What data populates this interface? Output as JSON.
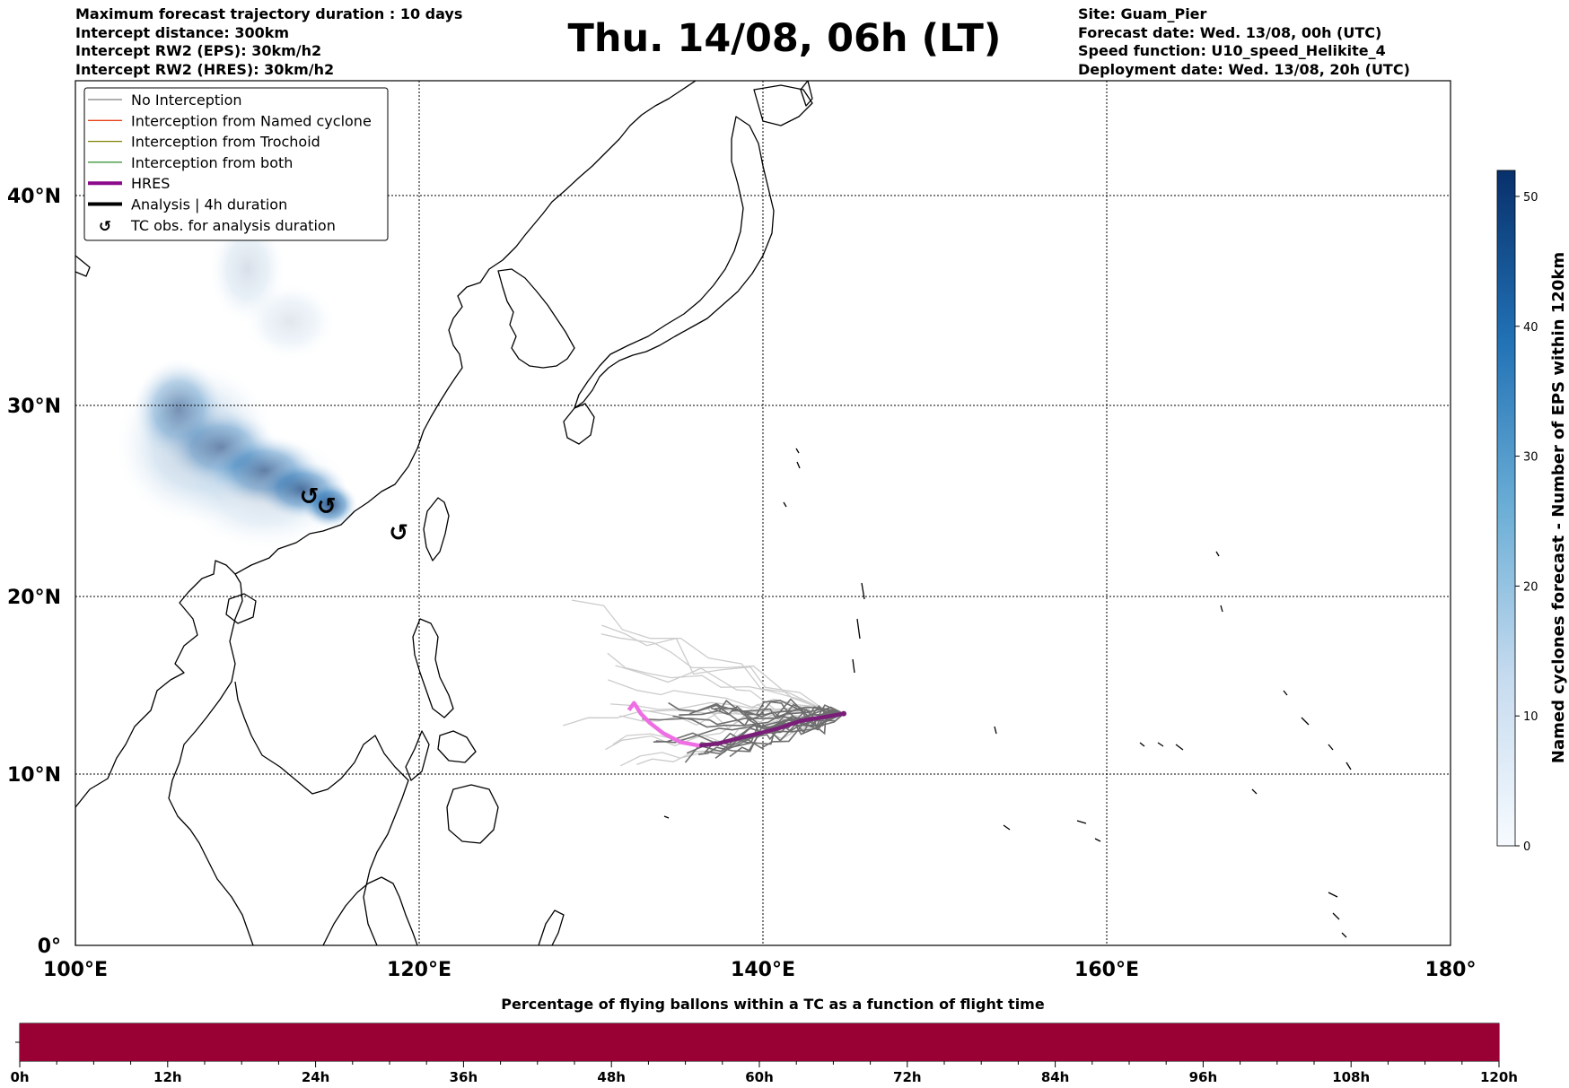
{
  "header": {
    "left": [
      "Maximum forecast trajectory duration : 10 days",
      "Intercept distance: 300km",
      "Intercept RW2 (EPS):  30km/h2",
      "Intercept RW2 (HRES): 30km/h2"
    ],
    "title": "Thu. 14/08, 06h (LT)",
    "right": [
      "Site: Guam_Pier",
      "Forecast date: Wed. 13/08, 00h (UTC)",
      "Speed function: U10_speed_Helikite_4",
      "Deployment date: Wed. 13/08, 20h (UTC)"
    ]
  },
  "map": {
    "lon_ticks": [
      {
        "value": 100,
        "label": "100°E"
      },
      {
        "value": 120,
        "label": "120°E"
      },
      {
        "value": 140,
        "label": "140°E"
      },
      {
        "value": 160,
        "label": "160°E"
      },
      {
        "value": 180,
        "label": "180°"
      }
    ],
    "lat_ticks": [
      {
        "value": 0,
        "label": "0°"
      },
      {
        "value": 10,
        "label": "10°N"
      },
      {
        "value": 20,
        "label": "20°N"
      },
      {
        "value": 30,
        "label": "30°N"
      },
      {
        "value": 40,
        "label": "40°N"
      }
    ],
    "site": {
      "name": "Guam_Pier",
      "lon": 144.7,
      "lat": 13.4
    },
    "tc_obs_symbol": "↺",
    "tc_obs": [
      {
        "lon": 113.6,
        "lat": 25.2
      },
      {
        "lon": 114.6,
        "lat": 24.7
      },
      {
        "lon": 118.8,
        "lat": 23.3
      }
    ],
    "hres_track": [
      [
        144.7,
        13.4
      ],
      [
        143.5,
        13.2
      ],
      [
        142.2,
        13.0
      ],
      [
        141.0,
        12.6
      ],
      [
        139.8,
        12.3
      ],
      [
        138.5,
        12.0
      ],
      [
        137.3,
        11.7
      ],
      [
        136.3,
        11.6
      ],
      [
        135.2,
        11.8
      ],
      [
        134.2,
        12.3
      ],
      [
        133.4,
        12.9
      ],
      [
        132.9,
        13.4
      ],
      [
        132.5,
        14.0
      ],
      [
        132.2,
        13.6
      ]
    ],
    "hres_split": 7,
    "density_colorbar": {
      "min": 0,
      "max": 52,
      "ticks": [
        0,
        10,
        20,
        30,
        40,
        50
      ],
      "label": "Named cyclones forecast - Number of EPS within 120km"
    },
    "density_blobs": [
      {
        "lon": 110.0,
        "lat": 36.5,
        "rlon": 2.2,
        "rlat": 2.6,
        "weight": 0.18
      },
      {
        "lon": 112.5,
        "lat": 34.0,
        "rlon": 2.6,
        "rlat": 1.8,
        "weight": 0.14
      },
      {
        "lon": 107.0,
        "lat": 28.0,
        "rlon": 4.6,
        "rlat": 4.0,
        "weight": 0.3
      },
      {
        "lon": 106.0,
        "lat": 29.8,
        "rlon": 2.6,
        "rlat": 2.4,
        "weight": 0.55
      },
      {
        "lon": 108.5,
        "lat": 27.8,
        "rlon": 3.2,
        "rlat": 2.0,
        "weight": 0.6
      },
      {
        "lon": 111.0,
        "lat": 26.6,
        "rlon": 3.2,
        "rlat": 1.8,
        "weight": 0.7
      },
      {
        "lon": 113.2,
        "lat": 25.6,
        "rlon": 2.6,
        "rlat": 1.5,
        "weight": 0.8
      },
      {
        "lon": 114.8,
        "lat": 24.8,
        "rlon": 1.6,
        "rlat": 1.2,
        "weight": 0.95
      },
      {
        "lon": 111.0,
        "lat": 25.5,
        "rlon": 5.0,
        "rlat": 3.0,
        "weight": 0.2
      }
    ]
  },
  "legend": {
    "items": [
      {
        "label": "No Interception",
        "color": "#808080",
        "style": "thin"
      },
      {
        "label": "Interception from Named cyclone",
        "color": "#e8441a",
        "style": "thin"
      },
      {
        "label": "Interception from Trochoid",
        "color": "#808000",
        "style": "thin"
      },
      {
        "label": "Interception from both",
        "color": "#2e8b2e",
        "style": "thin"
      },
      {
        "label": "HRES",
        "color": "#8b0a8b",
        "style": "thick"
      },
      {
        "label": "Analysis | 4h duration",
        "color": "#000000",
        "style": "thick"
      },
      {
        "label": "TC obs. for analysis duration",
        "color": "#000000",
        "style": "symbol"
      }
    ]
  },
  "progress_bar": {
    "title": "Percentage of flying ballons within a TC as a function of flight time",
    "color": "#990033",
    "value_percent": 100,
    "ticks": [
      "0h",
      "12h",
      "24h",
      "36h",
      "48h",
      "60h",
      "72h",
      "84h",
      "96h",
      "108h",
      "120h"
    ]
  }
}
